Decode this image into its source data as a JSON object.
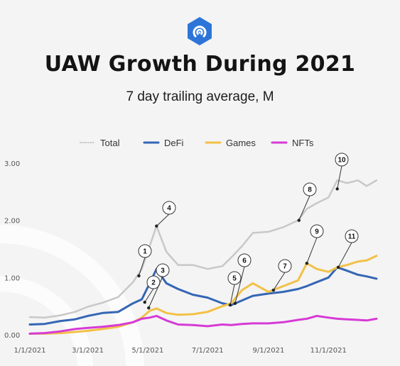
{
  "header": {
    "title": "UAW Growth During 2021",
    "subtitle": "7 day trailing average, M",
    "logo_icon": "blue-hexagon-signal-icon"
  },
  "colors": {
    "background": "#f4f4f4",
    "total": "#c8c8c8",
    "defi": "#3466b5",
    "games": "#f2c146",
    "nfts": "#d63ad6",
    "logo": "#2d74d8"
  },
  "chart_data": {
    "type": "line",
    "title": "UAW Growth During 2021",
    "subtitle": "7 day trailing average, M",
    "ylim": [
      0,
      3
    ],
    "yticks": [
      "0.00",
      "1.00",
      "2.00",
      "3.00"
    ],
    "y_tick_values": [
      0,
      1,
      2,
      3
    ],
    "xticks": [
      "1/1/2021",
      "3/1/2021",
      "5/1/2021",
      "7/1/2021",
      "9/1/2021",
      "11/1/2021"
    ],
    "x_tick_values": [
      "2021-01-01",
      "2021-03-01",
      "2021-05-01",
      "2021-07-01",
      "2021-09-01",
      "2021-11-01"
    ],
    "grid": false,
    "legend_position": "top",
    "series": [
      {
        "name": "Total",
        "style": "dotted",
        "points": [
          [
            "2021-01-01",
            0.31
          ],
          [
            "2021-01-16",
            0.3
          ],
          [
            "2021-02-01",
            0.34
          ],
          [
            "2021-02-16",
            0.4
          ],
          [
            "2021-03-01",
            0.49
          ],
          [
            "2021-03-16",
            0.56
          ],
          [
            "2021-04-01",
            0.66
          ],
          [
            "2021-04-16",
            0.92
          ],
          [
            "2021-04-25",
            1.15
          ],
          [
            "2021-05-03",
            1.55
          ],
          [
            "2021-05-10",
            1.9
          ],
          [
            "2021-05-20",
            1.45
          ],
          [
            "2021-06-01",
            1.22
          ],
          [
            "2021-06-16",
            1.22
          ],
          [
            "2021-07-01",
            1.15
          ],
          [
            "2021-07-16",
            1.2
          ],
          [
            "2021-07-25",
            1.35
          ],
          [
            "2021-08-05",
            1.55
          ],
          [
            "2021-08-16",
            1.78
          ],
          [
            "2021-09-01",
            1.8
          ],
          [
            "2021-09-16",
            1.88
          ],
          [
            "2021-10-01",
            2.0
          ],
          [
            "2021-10-10",
            2.2
          ],
          [
            "2021-10-20",
            2.3
          ],
          [
            "2021-11-01",
            2.4
          ],
          [
            "2021-11-10",
            2.7
          ],
          [
            "2021-11-20",
            2.65
          ],
          [
            "2021-12-01",
            2.7
          ],
          [
            "2021-12-10",
            2.6
          ],
          [
            "2021-12-20",
            2.7
          ]
        ]
      },
      {
        "name": "DeFi",
        "points": [
          [
            "2021-01-01",
            0.18
          ],
          [
            "2021-01-16",
            0.19
          ],
          [
            "2021-02-01",
            0.24
          ],
          [
            "2021-02-16",
            0.27
          ],
          [
            "2021-03-01",
            0.33
          ],
          [
            "2021-03-16",
            0.38
          ],
          [
            "2021-04-01",
            0.4
          ],
          [
            "2021-04-16",
            0.55
          ],
          [
            "2021-04-25",
            0.62
          ],
          [
            "2021-05-03",
            0.9
          ],
          [
            "2021-05-10",
            1.15
          ],
          [
            "2021-05-20",
            0.9
          ],
          [
            "2021-06-01",
            0.8
          ],
          [
            "2021-06-16",
            0.7
          ],
          [
            "2021-07-01",
            0.65
          ],
          [
            "2021-07-16",
            0.55
          ],
          [
            "2021-07-25",
            0.52
          ],
          [
            "2021-08-05",
            0.6
          ],
          [
            "2021-08-16",
            0.68
          ],
          [
            "2021-09-01",
            0.72
          ],
          [
            "2021-09-16",
            0.75
          ],
          [
            "2021-10-01",
            0.8
          ],
          [
            "2021-10-10",
            0.85
          ],
          [
            "2021-10-20",
            0.92
          ],
          [
            "2021-11-01",
            1.0
          ],
          [
            "2021-11-10",
            1.18
          ],
          [
            "2021-11-20",
            1.12
          ],
          [
            "2021-12-01",
            1.05
          ],
          [
            "2021-12-10",
            1.02
          ],
          [
            "2021-12-20",
            0.98
          ]
        ]
      },
      {
        "name": "Games",
        "points": [
          [
            "2021-01-01",
            0.02
          ],
          [
            "2021-01-16",
            0.02
          ],
          [
            "2021-02-01",
            0.03
          ],
          [
            "2021-02-16",
            0.05
          ],
          [
            "2021-03-01",
            0.07
          ],
          [
            "2021-03-16",
            0.1
          ],
          [
            "2021-04-01",
            0.14
          ],
          [
            "2021-04-16",
            0.22
          ],
          [
            "2021-04-25",
            0.3
          ],
          [
            "2021-05-03",
            0.42
          ],
          [
            "2021-05-10",
            0.46
          ],
          [
            "2021-05-20",
            0.38
          ],
          [
            "2021-06-01",
            0.35
          ],
          [
            "2021-06-16",
            0.36
          ],
          [
            "2021-07-01",
            0.4
          ],
          [
            "2021-07-16",
            0.5
          ],
          [
            "2021-07-25",
            0.55
          ],
          [
            "2021-08-05",
            0.78
          ],
          [
            "2021-08-16",
            0.9
          ],
          [
            "2021-09-01",
            0.75
          ],
          [
            "2021-09-16",
            0.85
          ],
          [
            "2021-10-01",
            0.95
          ],
          [
            "2021-10-10",
            1.25
          ],
          [
            "2021-10-20",
            1.15
          ],
          [
            "2021-11-01",
            1.1
          ],
          [
            "2021-11-10",
            1.18
          ],
          [
            "2021-11-20",
            1.22
          ],
          [
            "2021-12-01",
            1.28
          ],
          [
            "2021-12-10",
            1.3
          ],
          [
            "2021-12-20",
            1.38
          ]
        ]
      },
      {
        "name": "NFTs",
        "points": [
          [
            "2021-01-01",
            0.02
          ],
          [
            "2021-01-16",
            0.03
          ],
          [
            "2021-02-01",
            0.06
          ],
          [
            "2021-02-16",
            0.1
          ],
          [
            "2021-03-01",
            0.12
          ],
          [
            "2021-03-16",
            0.14
          ],
          [
            "2021-04-01",
            0.17
          ],
          [
            "2021-04-16",
            0.22
          ],
          [
            "2021-04-25",
            0.28
          ],
          [
            "2021-05-03",
            0.3
          ],
          [
            "2021-05-10",
            0.33
          ],
          [
            "2021-05-20",
            0.25
          ],
          [
            "2021-06-01",
            0.18
          ],
          [
            "2021-06-16",
            0.17
          ],
          [
            "2021-07-01",
            0.15
          ],
          [
            "2021-07-16",
            0.18
          ],
          [
            "2021-07-25",
            0.17
          ],
          [
            "2021-08-05",
            0.19
          ],
          [
            "2021-08-16",
            0.2
          ],
          [
            "2021-09-01",
            0.2
          ],
          [
            "2021-09-16",
            0.22
          ],
          [
            "2021-10-01",
            0.26
          ],
          [
            "2021-10-10",
            0.28
          ],
          [
            "2021-10-20",
            0.33
          ],
          [
            "2021-11-01",
            0.3
          ],
          [
            "2021-11-10",
            0.28
          ],
          [
            "2021-11-20",
            0.27
          ],
          [
            "2021-12-01",
            0.26
          ],
          [
            "2021-12-10",
            0.25
          ],
          [
            "2021-12-20",
            0.28
          ]
        ]
      }
    ],
    "annotations": [
      {
        "label": "1",
        "x": "2021-04-22",
        "y": 1.03
      },
      {
        "label": "2",
        "x": "2021-04-28",
        "y": 0.57
      },
      {
        "label": "3",
        "x": "2021-05-02",
        "y": 0.47
      },
      {
        "label": "4",
        "x": "2021-05-10",
        "y": 1.9
      },
      {
        "label": "5",
        "x": "2021-07-24",
        "y": 0.52
      },
      {
        "label": "6",
        "x": "2021-07-29",
        "y": 0.55
      },
      {
        "label": "7",
        "x": "2021-09-06",
        "y": 0.78
      },
      {
        "label": "8",
        "x": "2021-10-02",
        "y": 2.0
      },
      {
        "label": "9",
        "x": "2021-10-10",
        "y": 1.25
      },
      {
        "label": "10",
        "x": "2021-11-10",
        "y": 2.55
      },
      {
        "label": "11",
        "x": "2021-11-11",
        "y": 1.18
      }
    ]
  }
}
